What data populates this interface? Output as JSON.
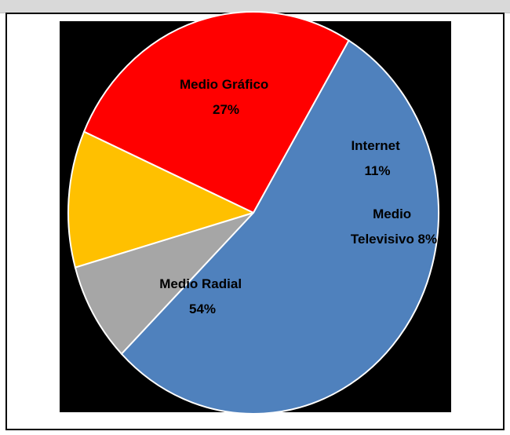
{
  "chart_data": {
    "type": "pie",
    "title": "",
    "slices": [
      {
        "label_line1": "Medio Gráfico",
        "label_line2": "27%",
        "value": 27,
        "color": "#ff0000"
      },
      {
        "label_line1": "Internet",
        "label_line2": "11%",
        "value": 11,
        "color": "#ffc000"
      },
      {
        "label_line1": "Medio",
        "label_line2": "Televisivo 8%",
        "value": 8,
        "color": "#a6a6a6"
      },
      {
        "label_line1": "Medio Radial",
        "label_line2": "54%",
        "value": 54,
        "color": "#4f81bd"
      }
    ]
  }
}
